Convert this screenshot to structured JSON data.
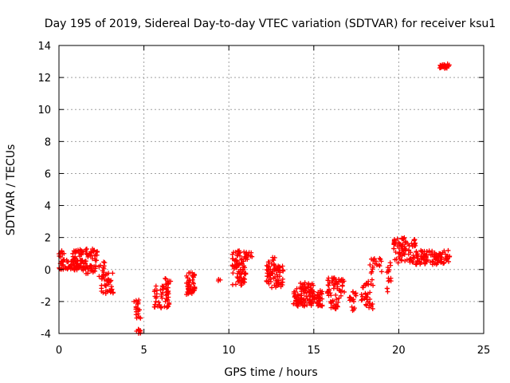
{
  "chart_data": {
    "type": "scatter",
    "title": "Day 195 of 2019, Sidereal Day-to-day VTEC variation (SDTVAR) for receiver ksu1",
    "xlabel": "GPS time / hours",
    "ylabel": "SDTVAR / TECUs",
    "xlim": [
      0,
      25
    ],
    "ylim": [
      -4,
      14
    ],
    "xticks": [
      0,
      5,
      10,
      15,
      20,
      25
    ],
    "yticks": [
      -4,
      -2,
      0,
      2,
      4,
      6,
      8,
      10,
      12,
      14
    ],
    "grid": true,
    "marker": "+",
    "marker_color": "#ff0000",
    "clusters": [
      {
        "x": [
          0.0,
          0.3
        ],
        "y": [
          0.5,
          1.2
        ],
        "n": 10
      },
      {
        "x": [
          0.0,
          1.6
        ],
        "y": [
          0.0,
          0.6
        ],
        "n": 60
      },
      {
        "x": [
          0.8,
          2.3
        ],
        "y": [
          0.5,
          1.3
        ],
        "n": 55
      },
      {
        "x": [
          0.9,
          2.2
        ],
        "y": [
          -0.3,
          0.3
        ],
        "n": 30
      },
      {
        "x": [
          2.3,
          2.7
        ],
        "y": [
          -0.5,
          0.5
        ],
        "n": 12
      },
      {
        "x": [
          2.5,
          3.2
        ],
        "y": [
          -1.5,
          -0.2
        ],
        "n": 40
      },
      {
        "x": [
          4.4,
          4.8
        ],
        "y": [
          -3.1,
          -1.9
        ],
        "n": 20
      },
      {
        "x": [
          4.5,
          4.8
        ],
        "y": [
          -4.0,
          -3.7
        ],
        "n": 10
      },
      {
        "x": [
          5.6,
          6.5
        ],
        "y": [
          -2.4,
          -1.0
        ],
        "n": 50
      },
      {
        "x": [
          6.2,
          6.6
        ],
        "y": [
          -1.0,
          -0.5
        ],
        "n": 10
      },
      {
        "x": [
          7.5,
          8.0
        ],
        "y": [
          -1.6,
          -0.2
        ],
        "n": 50
      },
      {
        "x": [
          9.3,
          9.5
        ],
        "y": [
          -0.9,
          -0.1
        ],
        "n": 3
      },
      {
        "x": [
          10.2,
          11.0
        ],
        "y": [
          0.2,
          1.2
        ],
        "n": 40
      },
      {
        "x": [
          10.2,
          11.0
        ],
        "y": [
          -1.0,
          0.2
        ],
        "n": 40
      },
      {
        "x": [
          11.0,
          11.4
        ],
        "y": [
          0.6,
          1.1
        ],
        "n": 10
      },
      {
        "x": [
          12.2,
          13.2
        ],
        "y": [
          -1.2,
          0.3
        ],
        "n": 70
      },
      {
        "x": [
          12.3,
          12.7
        ],
        "y": [
          0.3,
          0.8
        ],
        "n": 8
      },
      {
        "x": [
          13.8,
          15.5
        ],
        "y": [
          -2.3,
          -1.3
        ],
        "n": 110
      },
      {
        "x": [
          14.0,
          15.0
        ],
        "y": [
          -1.3,
          -0.8
        ],
        "n": 25
      },
      {
        "x": [
          15.8,
          16.8
        ],
        "y": [
          -1.9,
          -0.5
        ],
        "n": 50
      },
      {
        "x": [
          15.9,
          16.5
        ],
        "y": [
          -2.5,
          -1.9
        ],
        "n": 15
      },
      {
        "x": [
          17.1,
          17.5
        ],
        "y": [
          -2.1,
          -1.3
        ],
        "n": 15
      },
      {
        "x": [
          17.2,
          17.4
        ],
        "y": [
          -2.8,
          -2.3
        ],
        "n": 4
      },
      {
        "x": [
          17.8,
          18.5
        ],
        "y": [
          -2.5,
          -0.6
        ],
        "n": 35
      },
      {
        "x": [
          18.3,
          19.0
        ],
        "y": [
          -0.3,
          0.7
        ],
        "n": 20
      },
      {
        "x": [
          19.3,
          19.6
        ],
        "y": [
          -1.5,
          0.6
        ],
        "n": 15
      },
      {
        "x": [
          19.7,
          21.0
        ],
        "y": [
          0.4,
          2.0
        ],
        "n": 80
      },
      {
        "x": [
          21.0,
          23.0
        ],
        "y": [
          0.3,
          1.2
        ],
        "n": 100
      },
      {
        "x": [
          22.4,
          23.0
        ],
        "y": [
          12.55,
          12.85
        ],
        "n": 25
      }
    ]
  }
}
